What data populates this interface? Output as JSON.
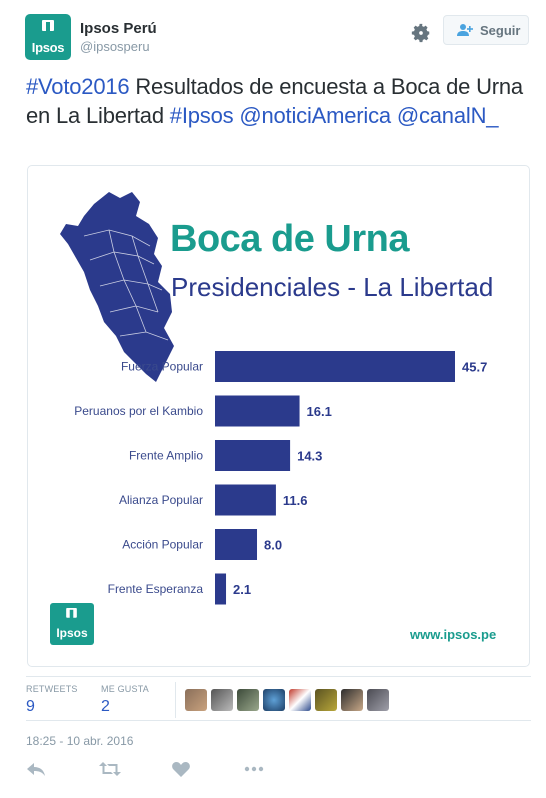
{
  "account": {
    "display_name": "Ipsos Perú",
    "handle": "@ipsosperu",
    "avatar_word": "Ipsos",
    "follow_label": "Seguir"
  },
  "tweet": {
    "hashtag1": "#Voto2016",
    "text1": " Resultados de encuesta a Boca de Urna en La Libertad ",
    "hashtag2": "#Ipsos",
    "mention1": "@noticiAmerica",
    "mention2": "@canalN_"
  },
  "card": {
    "title": "Boca de Urna",
    "subtitle": "Presidenciales - La Libertad",
    "logo_word": "Ipsos",
    "url": "www.ipsos.pe"
  },
  "chart_data": {
    "type": "bar",
    "orientation": "horizontal",
    "categories": [
      "Fuerza Popular",
      "Peruanos por el Kambio",
      "Frente Amplio",
      "Alianza Popular",
      "Acción Popular",
      "Frente Esperanza"
    ],
    "values": [
      45.7,
      16.1,
      14.3,
      11.6,
      8.0,
      2.1
    ],
    "value_labels": [
      "45.7",
      "16.1",
      "14.3",
      "11.6",
      "8.0",
      "2.1"
    ],
    "xlim": [
      0,
      45.7
    ],
    "bar_color": "#2b3a8c",
    "grid": false
  },
  "stats": {
    "retweets_label": "RETWEETS",
    "retweets_value": "9",
    "likes_label": "ME GUSTA",
    "likes_value": "2"
  },
  "timestamp": "18:25 - 10 abr. 2016",
  "icons": {
    "settings": "gear-icon",
    "follow": "follow-user-icon",
    "reply": "reply-icon",
    "retweet": "retweet-icon",
    "like": "heart-icon",
    "more": "more-icon"
  },
  "colors": {
    "brand_teal": "#1a9c8e",
    "link_blue": "#2b59c3",
    "bar_navy": "#2b3a8c"
  }
}
